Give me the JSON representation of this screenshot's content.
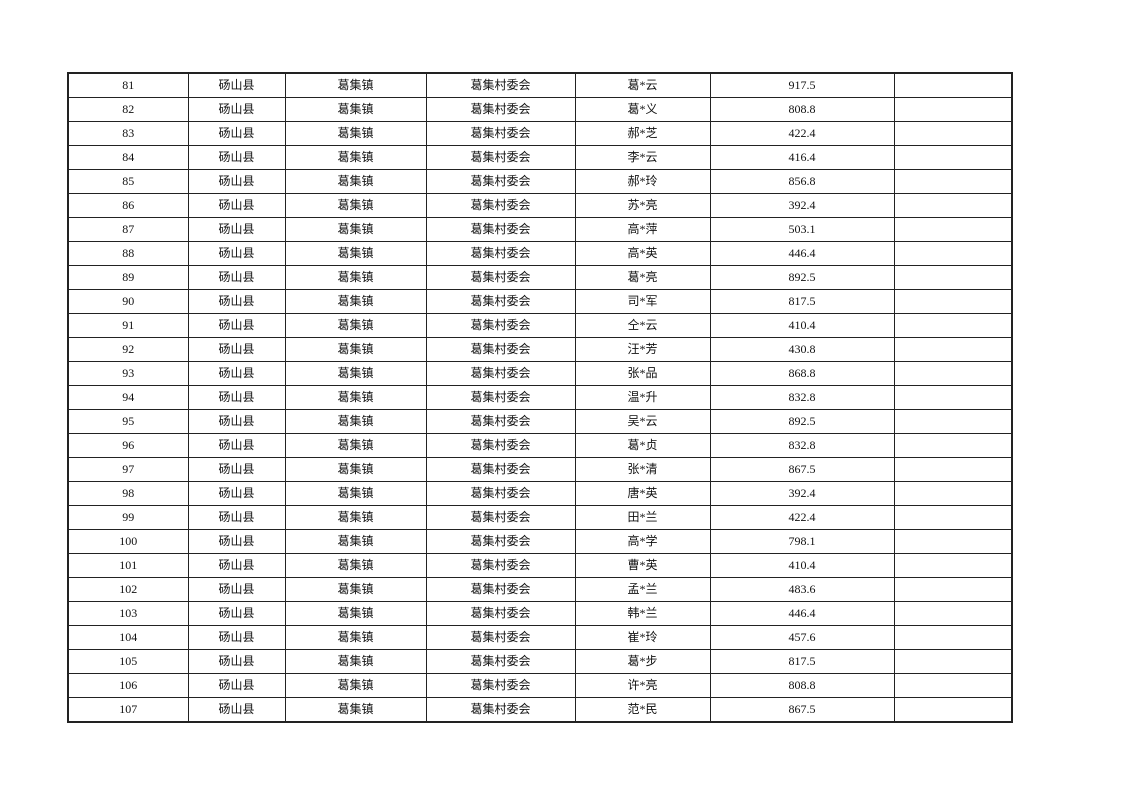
{
  "table": {
    "rows": [
      [
        "81",
        "砀山县",
        "葛集镇",
        "葛集村委会",
        "葛*云",
        "917.5",
        ""
      ],
      [
        "82",
        "砀山县",
        "葛集镇",
        "葛集村委会",
        "葛*义",
        "808.8",
        ""
      ],
      [
        "83",
        "砀山县",
        "葛集镇",
        "葛集村委会",
        "郝*芝",
        "422.4",
        ""
      ],
      [
        "84",
        "砀山县",
        "葛集镇",
        "葛集村委会",
        "李*云",
        "416.4",
        ""
      ],
      [
        "85",
        "砀山县",
        "葛集镇",
        "葛集村委会",
        "郝*玲",
        "856.8",
        ""
      ],
      [
        "86",
        "砀山县",
        "葛集镇",
        "葛集村委会",
        "苏*亮",
        "392.4",
        ""
      ],
      [
        "87",
        "砀山县",
        "葛集镇",
        "葛集村委会",
        "高*萍",
        "503.1",
        ""
      ],
      [
        "88",
        "砀山县",
        "葛集镇",
        "葛集村委会",
        "高*英",
        "446.4",
        ""
      ],
      [
        "89",
        "砀山县",
        "葛集镇",
        "葛集村委会",
        "葛*亮",
        "892.5",
        ""
      ],
      [
        "90",
        "砀山县",
        "葛集镇",
        "葛集村委会",
        "司*军",
        "817.5",
        ""
      ],
      [
        "91",
        "砀山县",
        "葛集镇",
        "葛集村委会",
        "仝*云",
        "410.4",
        ""
      ],
      [
        "92",
        "砀山县",
        "葛集镇",
        "葛集村委会",
        "汪*芳",
        "430.8",
        ""
      ],
      [
        "93",
        "砀山县",
        "葛集镇",
        "葛集村委会",
        "张*品",
        "868.8",
        ""
      ],
      [
        "94",
        "砀山县",
        "葛集镇",
        "葛集村委会",
        "温*升",
        "832.8",
        ""
      ],
      [
        "95",
        "砀山县",
        "葛集镇",
        "葛集村委会",
        "吴*云",
        "892.5",
        ""
      ],
      [
        "96",
        "砀山县",
        "葛集镇",
        "葛集村委会",
        "葛*贞",
        "832.8",
        ""
      ],
      [
        "97",
        "砀山县",
        "葛集镇",
        "葛集村委会",
        "张*清",
        "867.5",
        ""
      ],
      [
        "98",
        "砀山县",
        "葛集镇",
        "葛集村委会",
        "唐*英",
        "392.4",
        ""
      ],
      [
        "99",
        "砀山县",
        "葛集镇",
        "葛集村委会",
        "田*兰",
        "422.4",
        ""
      ],
      [
        "100",
        "砀山县",
        "葛集镇",
        "葛集村委会",
        "高*学",
        "798.1",
        ""
      ],
      [
        "101",
        "砀山县",
        "葛集镇",
        "葛集村委会",
        "曹*英",
        "410.4",
        ""
      ],
      [
        "102",
        "砀山县",
        "葛集镇",
        "葛集村委会",
        "孟*兰",
        "483.6",
        ""
      ],
      [
        "103",
        "砀山县",
        "葛集镇",
        "葛集村委会",
        "韩*兰",
        "446.4",
        ""
      ],
      [
        "104",
        "砀山县",
        "葛集镇",
        "葛集村委会",
        "崔*玲",
        "457.6",
        ""
      ],
      [
        "105",
        "砀山县",
        "葛集镇",
        "葛集村委会",
        "葛*步",
        "817.5",
        ""
      ],
      [
        "106",
        "砀山县",
        "葛集镇",
        "葛集村委会",
        "许*亮",
        "808.8",
        ""
      ],
      [
        "107",
        "砀山县",
        "葛集镇",
        "葛集村委会",
        "范*民",
        "867.5",
        ""
      ]
    ]
  }
}
